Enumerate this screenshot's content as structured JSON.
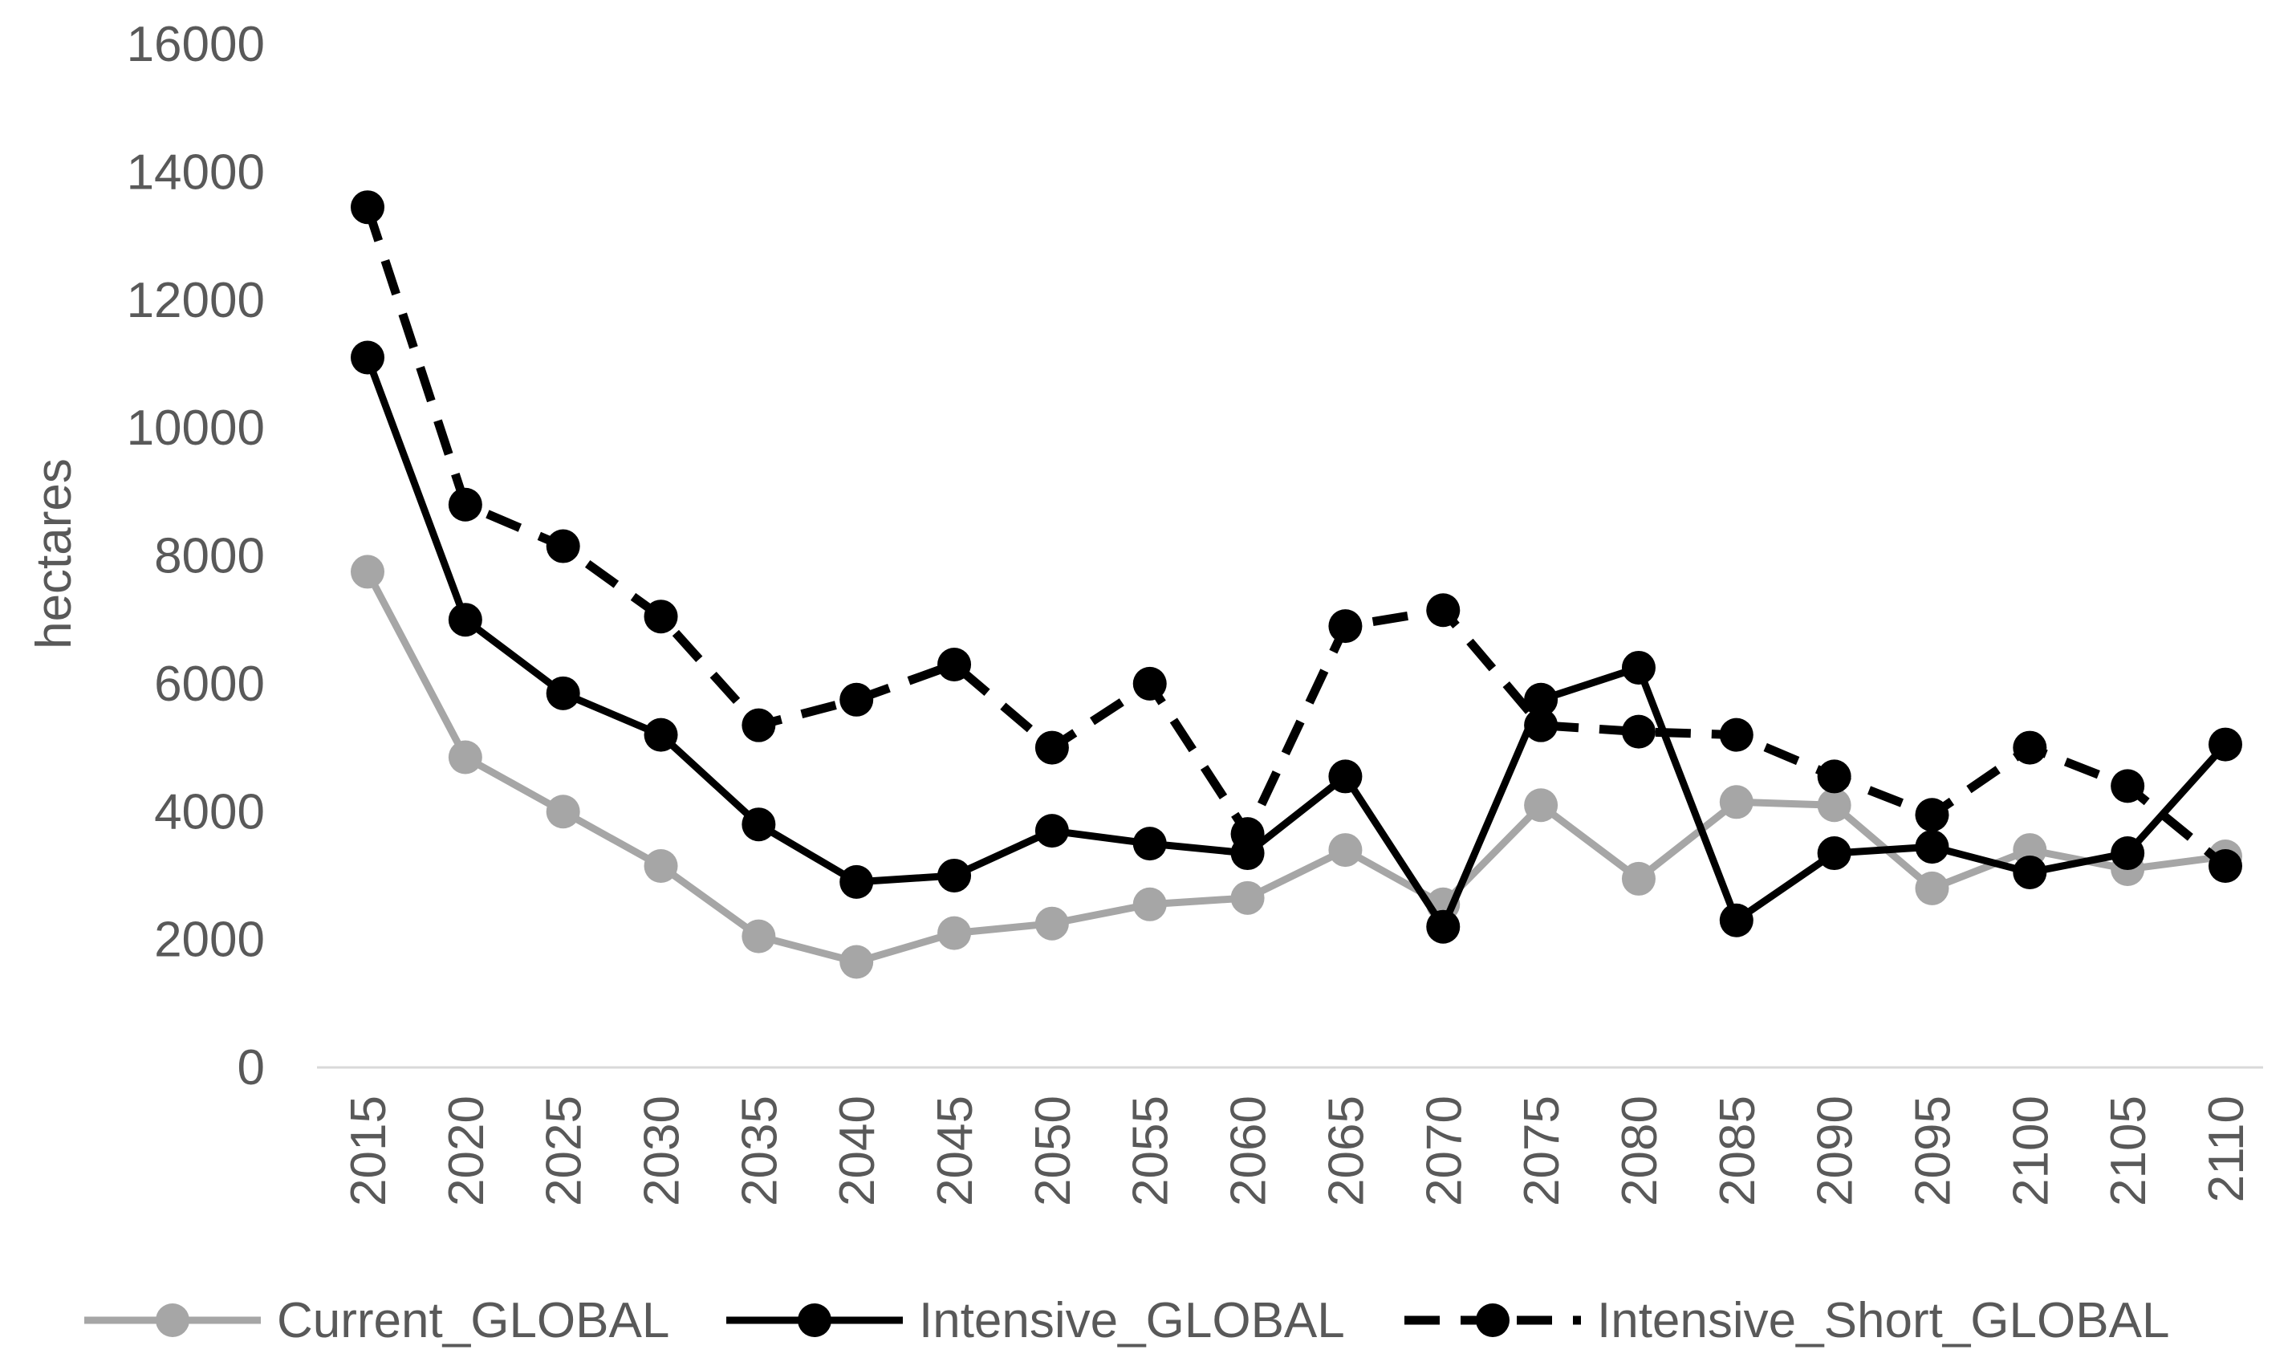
{
  "chart_data": {
    "type": "line",
    "title": "",
    "xlabel": "",
    "ylabel": "hectares",
    "ylim": [
      0,
      16000
    ],
    "yticks": [
      0,
      2000,
      4000,
      6000,
      8000,
      10000,
      12000,
      14000,
      16000
    ],
    "categories": [
      "2015",
      "2020",
      "2025",
      "2030",
      "2035",
      "2040",
      "2045",
      "2050",
      "2055",
      "2060",
      "2065",
      "2070",
      "2075",
      "2080",
      "2085",
      "2090",
      "2095",
      "2100",
      "2105",
      "2110"
    ],
    "grid": false,
    "legend_position": "bottom",
    "series": [
      {
        "name": "Current_GLOBAL",
        "color": "#a6a6a6",
        "line_style": "solid",
        "values": [
          7750,
          4850,
          4000,
          3150,
          2050,
          1650,
          2100,
          2250,
          2550,
          2650,
          3400,
          2550,
          4100,
          2950,
          4150,
          4100,
          2800,
          3400,
          3100,
          3300
        ]
      },
      {
        "name": "Intensive_GLOBAL",
        "color": "#000000",
        "line_style": "solid",
        "values": [
          11100,
          7000,
          5850,
          5200,
          3800,
          2900,
          3000,
          3700,
          3500,
          3350,
          4550,
          2200,
          5750,
          6250,
          2300,
          3350,
          3450,
          3050,
          3350,
          5050
        ]
      },
      {
        "name": "Intensive_Short_GLOBAL",
        "color": "#000000",
        "line_style": "dashed",
        "values": [
          13450,
          8800,
          8150,
          7050,
          5350,
          5750,
          6300,
          5000,
          6000,
          3650,
          6900,
          7150,
          5350,
          5250,
          5200,
          4550,
          3950,
          5000,
          4400,
          3150
        ]
      }
    ]
  }
}
